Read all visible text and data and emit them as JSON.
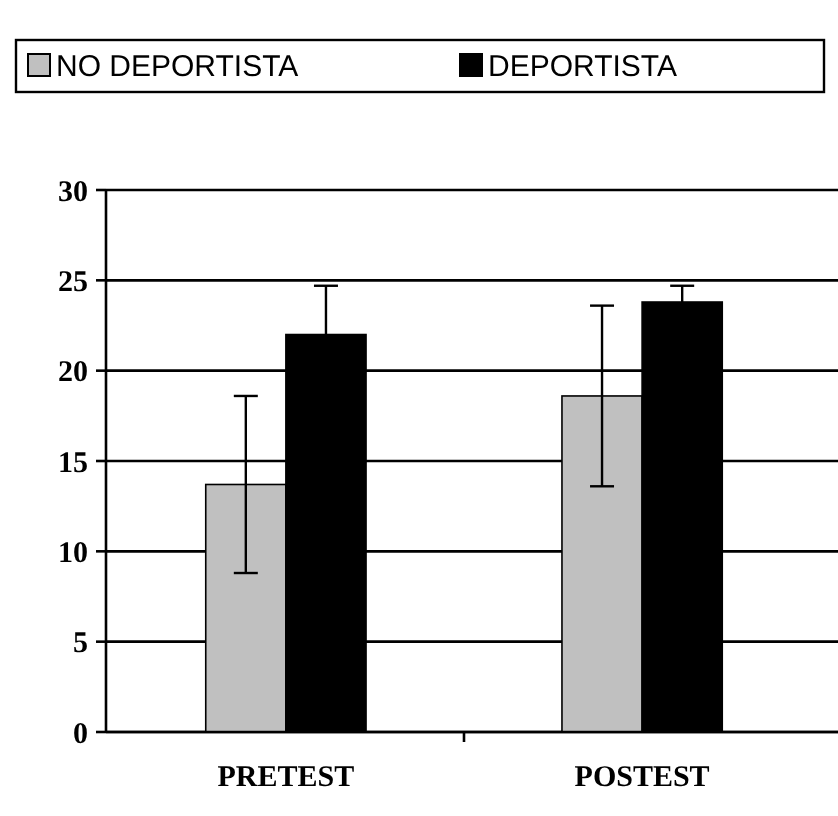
{
  "chart_data": {
    "type": "bar",
    "categories": [
      "PRETEST",
      "POSTEST"
    ],
    "series": [
      {
        "name": "NO DEPORTISTA",
        "color": "#c0c0c0",
        "values": [
          13.7,
          18.6
        ],
        "errors": [
          4.9,
          5
        ]
      },
      {
        "name": "DEPORTISTA",
        "color": "#000000",
        "values": [
          22,
          23.8
        ],
        "errors": [
          2.7,
          0.9
        ]
      }
    ],
    "ylim": [
      0,
      30
    ],
    "yticks": [
      0,
      5,
      10,
      15,
      20,
      25,
      30
    ],
    "grid": "y",
    "legend": "top"
  }
}
